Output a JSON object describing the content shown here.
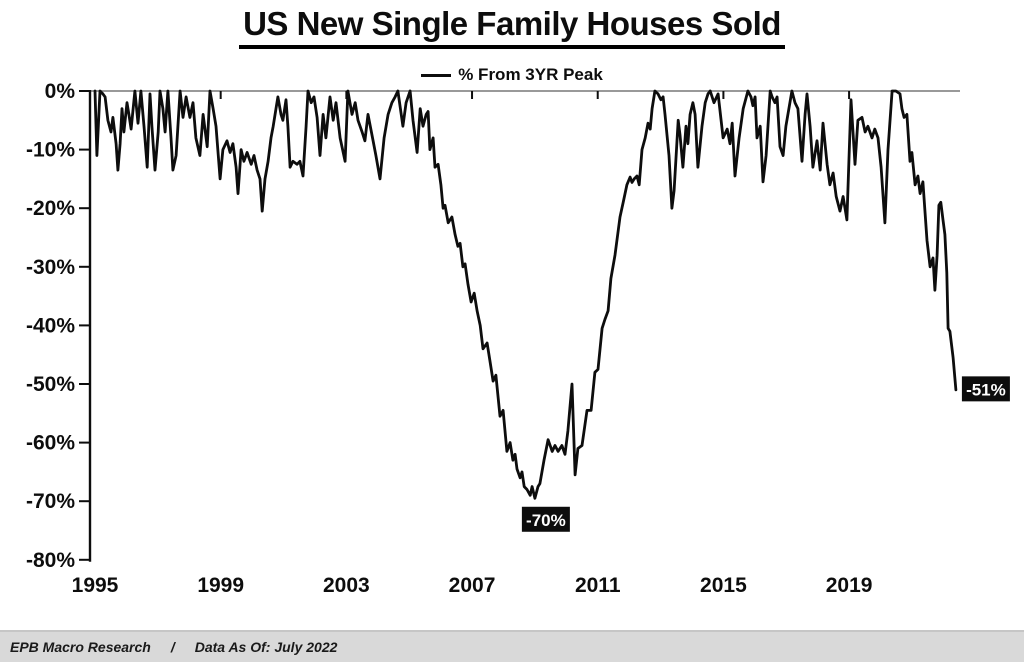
{
  "title": "US New Single Family Houses Sold",
  "legend": {
    "label": "% From 3YR Peak"
  },
  "footer": {
    "left": "EPB Macro Research",
    "separator": "/",
    "right": "Data As Of: July 2022"
  },
  "colors": {
    "line": "#0d0d0d",
    "axis": "#0d0d0d",
    "gridline": "#999999",
    "annotation_bg": "#0d0d0d",
    "annotation_text": "#ffffff",
    "footer_bg": "#d9d9d9",
    "background": "#ffffff"
  },
  "chart_data": {
    "type": "line",
    "title": "US New Single Family Houses Sold",
    "series_name": "% From 3YR Peak",
    "xlabel": "",
    "ylabel": "",
    "xlim": [
      1995,
      2022.6
    ],
    "ylim": [
      -80,
      0
    ],
    "grid": "0%-line-only",
    "legend_position": "top-center",
    "y_ticks": [
      {
        "value": 0,
        "label": "0%"
      },
      {
        "value": -10,
        "label": "-10%"
      },
      {
        "value": -20,
        "label": "-20%"
      },
      {
        "value": -30,
        "label": "-30%"
      },
      {
        "value": -40,
        "label": "-40%"
      },
      {
        "value": -50,
        "label": "-50%"
      },
      {
        "value": -60,
        "label": "-60%"
      },
      {
        "value": -70,
        "label": "-70%"
      },
      {
        "value": -80,
        "label": "-80%"
      }
    ],
    "x_ticks": [
      {
        "value": 1995,
        "label": "1995"
      },
      {
        "value": 1999,
        "label": "1999"
      },
      {
        "value": 2003,
        "label": "2003"
      },
      {
        "value": 2007,
        "label": "2007"
      },
      {
        "value": 2011,
        "label": "2011"
      },
      {
        "value": 2015,
        "label": "2015"
      },
      {
        "value": 2019,
        "label": "2019"
      }
    ],
    "annotations": [
      {
        "label": "-70%",
        "x": 2009.0,
        "y": -69.5
      },
      {
        "label": "-51%",
        "x": 2022.4,
        "y": -51
      }
    ],
    "points": [
      [
        1995.0,
        0
      ],
      [
        1995.06,
        -11
      ],
      [
        1995.16,
        0
      ],
      [
        1995.25,
        -0.5
      ],
      [
        1995.32,
        -1
      ],
      [
        1995.41,
        -5
      ],
      [
        1995.51,
        -7
      ],
      [
        1995.57,
        -4.5
      ],
      [
        1995.67,
        -9
      ],
      [
        1995.73,
        -13.5
      ],
      [
        1995.8,
        -9
      ],
      [
        1995.86,
        -3
      ],
      [
        1995.92,
        -7
      ],
      [
        1996.02,
        -2
      ],
      [
        1996.08,
        -4
      ],
      [
        1996.15,
        -6.5
      ],
      [
        1996.27,
        0
      ],
      [
        1996.37,
        -5.5
      ],
      [
        1996.46,
        0
      ],
      [
        1996.56,
        -6
      ],
      [
        1996.66,
        -13
      ],
      [
        1996.75,
        -0.5
      ],
      [
        1996.81,
        -6
      ],
      [
        1996.91,
        -13.5
      ],
      [
        1997.01,
        -7
      ],
      [
        1997.07,
        0
      ],
      [
        1997.16,
        -3
      ],
      [
        1997.23,
        -7
      ],
      [
        1997.32,
        0
      ],
      [
        1997.42,
        -8
      ],
      [
        1997.48,
        -13.5
      ],
      [
        1997.58,
        -11
      ],
      [
        1997.71,
        0
      ],
      [
        1997.8,
        -4.5
      ],
      [
        1997.9,
        -1
      ],
      [
        1998.02,
        -4.5
      ],
      [
        1998.12,
        -2
      ],
      [
        1998.21,
        -8
      ],
      [
        1998.34,
        -11
      ],
      [
        1998.44,
        -4
      ],
      [
        1998.57,
        -9.5
      ],
      [
        1998.66,
        0
      ],
      [
        1998.76,
        -3
      ],
      [
        1998.85,
        -6
      ],
      [
        1998.98,
        -15
      ],
      [
        1999.07,
        -10
      ],
      [
        1999.2,
        -8.5
      ],
      [
        1999.3,
        -10.5
      ],
      [
        1999.39,
        -9
      ],
      [
        1999.49,
        -13
      ],
      [
        1999.55,
        -17.5
      ],
      [
        1999.65,
        -10
      ],
      [
        1999.74,
        -12
      ],
      [
        1999.84,
        -10.5
      ],
      [
        1999.97,
        -12.5
      ],
      [
        2000.06,
        -11
      ],
      [
        2000.16,
        -13.5
      ],
      [
        2000.25,
        -15
      ],
      [
        2000.32,
        -20.5
      ],
      [
        2000.41,
        -15
      ],
      [
        2000.51,
        -12
      ],
      [
        2000.6,
        -8
      ],
      [
        2000.67,
        -6
      ],
      [
        2000.76,
        -3
      ],
      [
        2000.82,
        -1
      ],
      [
        2000.92,
        -4
      ],
      [
        2000.98,
        -5
      ],
      [
        2001.08,
        -1.5
      ],
      [
        2001.14,
        -6
      ],
      [
        2001.21,
        -13
      ],
      [
        2001.3,
        -12
      ],
      [
        2001.43,
        -12.5
      ],
      [
        2001.52,
        -12
      ],
      [
        2001.62,
        -14.5
      ],
      [
        2001.72,
        -6
      ],
      [
        2001.78,
        0
      ],
      [
        2001.88,
        -2
      ],
      [
        2001.97,
        -1
      ],
      [
        2002.07,
        -4.5
      ],
      [
        2002.16,
        -11
      ],
      [
        2002.26,
        -4
      ],
      [
        2002.35,
        -8
      ],
      [
        2002.48,
        -1
      ],
      [
        2002.58,
        -5
      ],
      [
        2002.67,
        -2
      ],
      [
        2002.8,
        -8
      ],
      [
        2002.96,
        -12
      ],
      [
        2003.05,
        0
      ],
      [
        2003.18,
        -4
      ],
      [
        2003.28,
        -2
      ],
      [
        2003.37,
        -5
      ],
      [
        2003.5,
        -7
      ],
      [
        2003.59,
        -8.5
      ],
      [
        2003.69,
        -4
      ],
      [
        2003.85,
        -8.5
      ],
      [
        2003.94,
        -11
      ],
      [
        2004.07,
        -15
      ],
      [
        2004.2,
        -8
      ],
      [
        2004.33,
        -4
      ],
      [
        2004.45,
        -2
      ],
      [
        2004.55,
        -1
      ],
      [
        2004.64,
        0
      ],
      [
        2004.8,
        -6
      ],
      [
        2004.9,
        -2
      ],
      [
        2005.03,
        0
      ],
      [
        2005.12,
        -5
      ],
      [
        2005.25,
        -10.5
      ],
      [
        2005.35,
        -3
      ],
      [
        2005.44,
        -6
      ],
      [
        2005.54,
        -4
      ],
      [
        2005.6,
        -3.5
      ],
      [
        2005.66,
        -10
      ],
      [
        2005.76,
        -8
      ],
      [
        2005.82,
        -13
      ],
      [
        2005.92,
        -12.5
      ],
      [
        2006.01,
        -16
      ],
      [
        2006.08,
        -20
      ],
      [
        2006.14,
        -19.5
      ],
      [
        2006.24,
        -22.5
      ],
      [
        2006.36,
        -21.5
      ],
      [
        2006.46,
        -24.5
      ],
      [
        2006.55,
        -26.5
      ],
      [
        2006.62,
        -26
      ],
      [
        2006.71,
        -30
      ],
      [
        2006.78,
        -29.5
      ],
      [
        2006.87,
        -33
      ],
      [
        2006.97,
        -36
      ],
      [
        2007.07,
        -34.5
      ],
      [
        2007.16,
        -37.5
      ],
      [
        2007.26,
        -40
      ],
      [
        2007.35,
        -44
      ],
      [
        2007.48,
        -43
      ],
      [
        2007.57,
        -46
      ],
      [
        2007.67,
        -49.5
      ],
      [
        2007.76,
        -48.5
      ],
      [
        2007.89,
        -55.5
      ],
      [
        2007.99,
        -54.5
      ],
      [
        2008.11,
        -61.5
      ],
      [
        2008.21,
        -60
      ],
      [
        2008.3,
        -63
      ],
      [
        2008.37,
        -62
      ],
      [
        2008.43,
        -64.5
      ],
      [
        2008.53,
        -66
      ],
      [
        2008.59,
        -65
      ],
      [
        2008.66,
        -67.5
      ],
      [
        2008.75,
        -68
      ],
      [
        2008.85,
        -69
      ],
      [
        2008.91,
        -67.5
      ],
      [
        2009.0,
        -69.5
      ],
      [
        2009.1,
        -67.5
      ],
      [
        2009.16,
        -67
      ],
      [
        2009.29,
        -63
      ],
      [
        2009.42,
        -59.5
      ],
      [
        2009.55,
        -61.5
      ],
      [
        2009.64,
        -60.5
      ],
      [
        2009.74,
        -61.5
      ],
      [
        2009.86,
        -60.5
      ],
      [
        2009.96,
        -62
      ],
      [
        2010.05,
        -58
      ],
      [
        2010.18,
        -50
      ],
      [
        2010.28,
        -65.5
      ],
      [
        2010.37,
        -61
      ],
      [
        2010.5,
        -60.5
      ],
      [
        2010.66,
        -54.5
      ],
      [
        2010.79,
        -54.5
      ],
      [
        2010.91,
        -48
      ],
      [
        2011.01,
        -47.5
      ],
      [
        2011.14,
        -40.5
      ],
      [
        2011.23,
        -39
      ],
      [
        2011.33,
        -37.5
      ],
      [
        2011.42,
        -32
      ],
      [
        2011.55,
        -28
      ],
      [
        2011.71,
        -21.5
      ],
      [
        2011.81,
        -19
      ],
      [
        2011.93,
        -16
      ],
      [
        2012.03,
        -14.7
      ],
      [
        2012.09,
        -15.6
      ],
      [
        2012.16,
        -15
      ],
      [
        2012.25,
        -14.5
      ],
      [
        2012.32,
        -16
      ],
      [
        2012.41,
        -10
      ],
      [
        2012.51,
        -8
      ],
      [
        2012.6,
        -5.5
      ],
      [
        2012.67,
        -6.5
      ],
      [
        2012.73,
        -3
      ],
      [
        2012.82,
        0
      ],
      [
        2012.92,
        -0.5
      ],
      [
        2013.01,
        -1.5
      ],
      [
        2013.08,
        -1
      ],
      [
        2013.14,
        -4
      ],
      [
        2013.27,
        -11
      ],
      [
        2013.36,
        -20
      ],
      [
        2013.43,
        -17
      ],
      [
        2013.56,
        -5
      ],
      [
        2013.62,
        -7.5
      ],
      [
        2013.71,
        -13
      ],
      [
        2013.81,
        -6
      ],
      [
        2013.87,
        -9
      ],
      [
        2013.94,
        -4
      ],
      [
        2014.03,
        -2
      ],
      [
        2014.1,
        -4
      ],
      [
        2014.19,
        -13
      ],
      [
        2014.32,
        -6
      ],
      [
        2014.42,
        -2
      ],
      [
        2014.51,
        -0.5
      ],
      [
        2014.58,
        0
      ],
      [
        2014.7,
        -2
      ],
      [
        2014.83,
        -0.5
      ],
      [
        2014.99,
        -8
      ],
      [
        2015.12,
        -6.5
      ],
      [
        2015.21,
        -9
      ],
      [
        2015.28,
        -5.5
      ],
      [
        2015.37,
        -14.5
      ],
      [
        2015.5,
        -8
      ],
      [
        2015.63,
        -3
      ],
      [
        2015.78,
        0
      ],
      [
        2015.88,
        -1
      ],
      [
        2015.94,
        -2.5
      ],
      [
        2016.01,
        -1
      ],
      [
        2016.07,
        -8
      ],
      [
        2016.17,
        -6
      ],
      [
        2016.26,
        -15.5
      ],
      [
        2016.36,
        -11
      ],
      [
        2016.49,
        0
      ],
      [
        2016.55,
        -1
      ],
      [
        2016.64,
        -2
      ],
      [
        2016.71,
        -1
      ],
      [
        2016.8,
        -9.5
      ],
      [
        2016.9,
        -11
      ],
      [
        2016.99,
        -6
      ],
      [
        2017.18,
        0
      ],
      [
        2017.28,
        -2
      ],
      [
        2017.37,
        -3
      ],
      [
        2017.5,
        -12
      ],
      [
        2017.6,
        -4
      ],
      [
        2017.66,
        -0.5
      ],
      [
        2017.76,
        -6
      ],
      [
        2017.85,
        -13
      ],
      [
        2017.98,
        -8.5
      ],
      [
        2018.08,
        -13.5
      ],
      [
        2018.17,
        -5.5
      ],
      [
        2018.3,
        -12.5
      ],
      [
        2018.39,
        -16
      ],
      [
        2018.49,
        -14
      ],
      [
        2018.59,
        -18
      ],
      [
        2018.71,
        -20.5
      ],
      [
        2018.81,
        -18
      ],
      [
        2018.93,
        -22
      ],
      [
        2019.06,
        -1.5
      ],
      [
        2019.19,
        -12.5
      ],
      [
        2019.28,
        -5
      ],
      [
        2019.41,
        -4.5
      ],
      [
        2019.51,
        -7
      ],
      [
        2019.6,
        -6
      ],
      [
        2019.73,
        -8
      ],
      [
        2019.82,
        -6.5
      ],
      [
        2019.92,
        -8
      ],
      [
        2020.02,
        -13
      ],
      [
        2020.14,
        -22.5
      ],
      [
        2020.24,
        -10
      ],
      [
        2020.37,
        0
      ],
      [
        2020.49,
        0
      ],
      [
        2020.62,
        -0.5
      ],
      [
        2020.68,
        -3
      ],
      [
        2020.75,
        -4.5
      ],
      [
        2020.84,
        -4
      ],
      [
        2020.94,
        -12
      ],
      [
        2021.0,
        -10.5
      ],
      [
        2021.1,
        -16
      ],
      [
        2021.19,
        -14.5
      ],
      [
        2021.26,
        -17.5
      ],
      [
        2021.35,
        -15.5
      ],
      [
        2021.48,
        -25.5
      ],
      [
        2021.58,
        -30
      ],
      [
        2021.67,
        -28.5
      ],
      [
        2021.73,
        -34
      ],
      [
        2021.8,
        -28
      ],
      [
        2021.86,
        -19.5
      ],
      [
        2021.92,
        -19
      ],
      [
        2021.99,
        -22
      ],
      [
        2022.05,
        -24.5
      ],
      [
        2022.11,
        -31
      ],
      [
        2022.15,
        -40.5
      ],
      [
        2022.21,
        -41
      ],
      [
        2022.31,
        -45.5
      ],
      [
        2022.4,
        -51
      ]
    ]
  }
}
